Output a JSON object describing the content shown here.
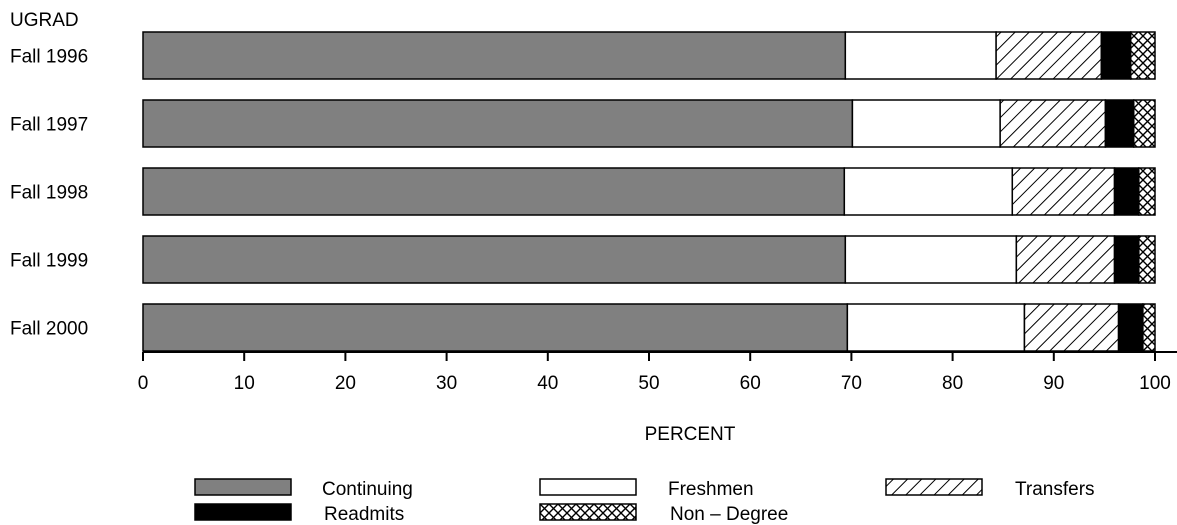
{
  "chart_data": {
    "type": "bar",
    "orientation": "horizontal",
    "stacked": true,
    "title": "",
    "corner_label": "UGRAD",
    "xlabel": "PERCENT",
    "ylabel": "",
    "xlim": [
      0,
      100
    ],
    "xticks": [
      "0",
      "10",
      "20",
      "30",
      "40",
      "50",
      "60",
      "70",
      "80",
      "90",
      "100"
    ],
    "grid": false,
    "legend_position": "bottom",
    "categories": [
      "Fall 1996",
      "Fall 1997",
      "Fall 1998",
      "Fall 1999",
      "Fall 2000"
    ],
    "series": [
      {
        "name": "Continuing",
        "values": [
          69.4,
          70.1,
          69.3,
          69.4,
          69.6
        ],
        "fill": "#808080",
        "pattern": "solid"
      },
      {
        "name": "Freshmen",
        "values": [
          14.9,
          14.6,
          16.6,
          16.9,
          17.5
        ],
        "fill": "#ffffff",
        "pattern": "solid"
      },
      {
        "name": "Transfers",
        "values": [
          10.4,
          10.4,
          10.1,
          9.7,
          9.3
        ],
        "fill": "#ffffff",
        "pattern": "diagonal"
      },
      {
        "name": "Readmits",
        "values": [
          2.9,
          2.8,
          2.4,
          2.4,
          2.4
        ],
        "fill": "#000000",
        "pattern": "solid"
      },
      {
        "name": "Non – Degree",
        "values": [
          2.4,
          2.1,
          1.6,
          1.6,
          1.2
        ],
        "fill": "#ffffff",
        "pattern": "crosshatch"
      }
    ],
    "legend_order": [
      "Continuing",
      "Freshmen",
      "Transfers",
      "Readmits",
      "Non – Degree"
    ]
  }
}
